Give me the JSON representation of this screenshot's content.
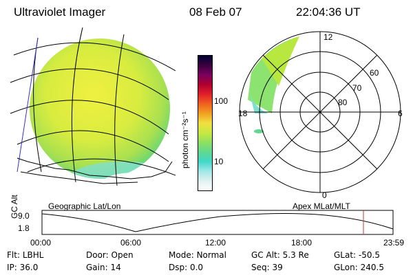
{
  "header": {
    "instrument": "Ultraviolet Imager",
    "date": "08 Feb 07",
    "time": "22:04:36 UT"
  },
  "colorbar": {
    "unit_label": "photon cm⁻²s⁻¹",
    "ticks": [
      "100",
      "10"
    ],
    "colors": [
      "#000033",
      "#3b0040",
      "#7a0060",
      "#b00030",
      "#e0202a",
      "#f06020",
      "#f0a020",
      "#f0e040",
      "#c8e840",
      "#90e060",
      "#60d890",
      "#40d8c8",
      "#a0e8e8",
      "#e0f0f0",
      "#ffffff"
    ]
  },
  "geo_panel": {
    "caption": "Geographic Lat/Lon"
  },
  "polar_panel": {
    "caption": "Apex  MLat/MLT",
    "mlt_labels": {
      "top": "12",
      "left": "18",
      "right": "6",
      "bottom": "0"
    },
    "lat_labels": [
      "60",
      "70",
      "80"
    ]
  },
  "altitude_plot": {
    "ylabel": "GC Alt",
    "yticks": [
      "9.0",
      "1.8"
    ],
    "xticks": [
      "00:00",
      "06:00",
      "12:00",
      "18:00",
      "23:59"
    ],
    "marker_color": "#cc3333"
  },
  "status": {
    "row1": [
      {
        "label": "Flt:",
        "value": "LBHL"
      },
      {
        "label": "Door:",
        "value": "Open"
      },
      {
        "label": "Mode:",
        "value": "Normal"
      },
      {
        "label": "GC Alt:",
        "value": "5.3 Re"
      },
      {
        "label": "GLat:",
        "value": "-50.5"
      }
    ],
    "row2": [
      {
        "label": "IP:",
        "value": "36.0"
      },
      {
        "label": "Gain:",
        "value": "14"
      },
      {
        "label": "Dsp:",
        "value": "0.0"
      },
      {
        "label": "Seq:",
        "value": "39"
      },
      {
        "label": "GLon:",
        "value": "240.5"
      }
    ]
  }
}
